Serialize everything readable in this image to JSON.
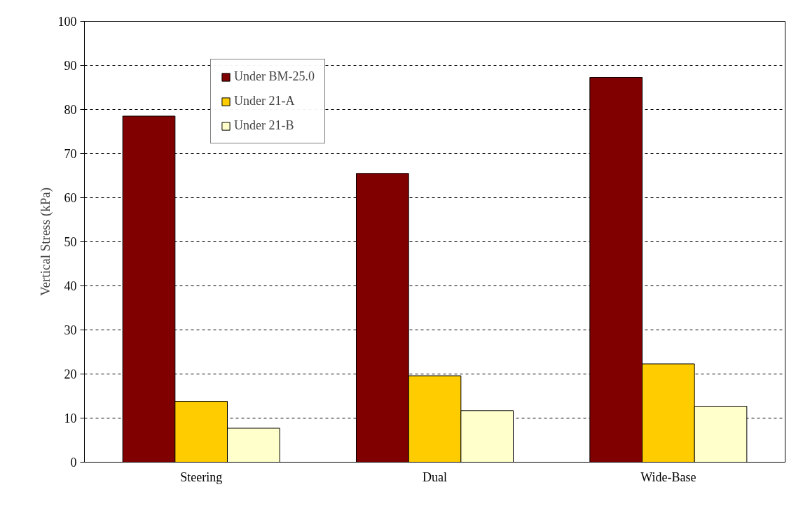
{
  "chart_data": {
    "type": "bar",
    "ylabel": "Vertical Stress (kPa)",
    "categories": [
      "Steering",
      "Dual",
      "Wide-Base"
    ],
    "series": [
      {
        "name": "Under BM-25.0",
        "color": "#800000",
        "values": [
          78.5,
          65.5,
          87.3
        ]
      },
      {
        "name": "Under 21-A",
        "color": "#ffcc00",
        "values": [
          13.8,
          19.6,
          22.3
        ]
      },
      {
        "name": "Under 21-B",
        "color": "#ffffcc",
        "values": [
          7.7,
          11.7,
          12.7
        ]
      }
    ],
    "ylim": [
      0,
      100
    ],
    "yticks": [
      0,
      10,
      20,
      30,
      40,
      50,
      60,
      70,
      80,
      90,
      100
    ],
    "grid": "y",
    "legend": "top left"
  }
}
